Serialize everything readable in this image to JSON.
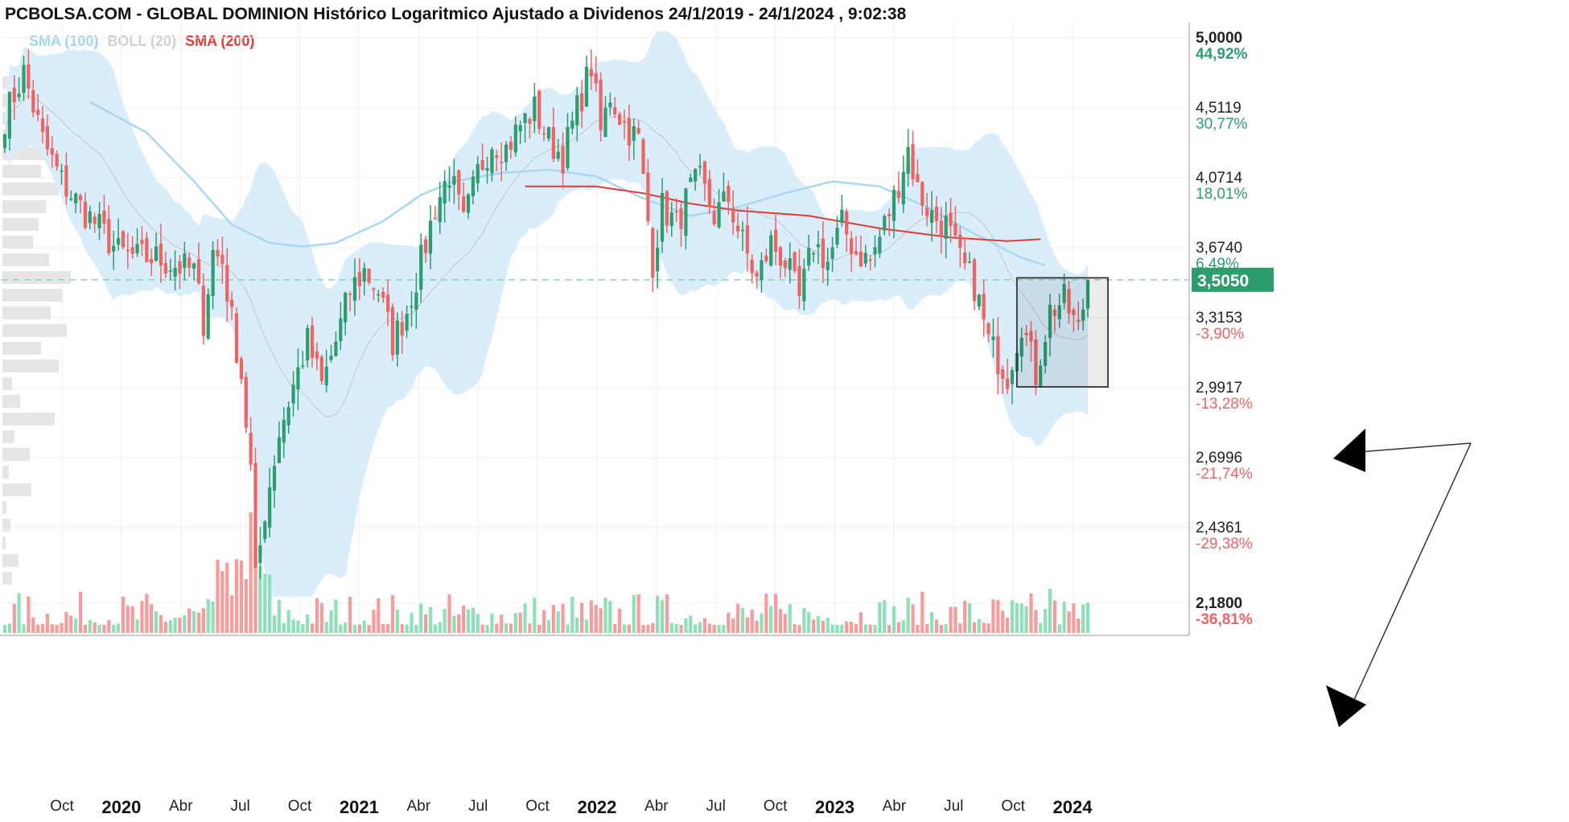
{
  "header": {
    "title": "PCBOLSA.COM - GLOBAL DOMINION Histórico Logaritmico Ajustado a Dividenos 24/1/2019 - 24/1/2024 , 9:02:38"
  },
  "legend": [
    {
      "label": "SMA (100)",
      "color": "#9fd3f3"
    },
    {
      "label": "BOLL (20)",
      "color": "#cfcfcf"
    },
    {
      "label": "SMA (200)",
      "color": "#e53935"
    }
  ],
  "colors": {
    "up": "#2e9d6e",
    "down": "#f06363",
    "vol_up": "#8ee0b8",
    "vol_down": "#f79c9c",
    "boll_fill": "#d9edfb",
    "sma100": "#a8d8f5",
    "sma200": "#e53935",
    "last_price_bg": "#2e9d6e"
  },
  "chart_data": {
    "type": "candlestick",
    "scale": "log",
    "ylim": [
      2.18,
      5.0
    ],
    "y_ticks": [
      {
        "price": "5,0000",
        "pct": "44,92%",
        "dir": "up",
        "bold": true
      },
      {
        "price": "4,5119",
        "pct": "30,77%",
        "dir": "up",
        "bold": false
      },
      {
        "price": "4,0714",
        "pct": "18,01%",
        "dir": "up",
        "bold": false
      },
      {
        "price": "3,6740",
        "pct": "6,49%",
        "dir": "up",
        "bold": false
      },
      {
        "price": "3,3153",
        "pct": "-3,90%",
        "dir": "down",
        "bold": false
      },
      {
        "price": "2,9917",
        "pct": "-13,28%",
        "dir": "down",
        "bold": false
      },
      {
        "price": "2,6996",
        "pct": "-21,74%",
        "dir": "down",
        "bold": false
      },
      {
        "price": "2,4361",
        "pct": "-29,38%",
        "dir": "down",
        "bold": false
      },
      {
        "price": "2,1800",
        "pct": "-36,81%",
        "dir": "down",
        "bold": true
      }
    ],
    "last_price": "3,5050",
    "x_ticks": [
      {
        "label": "Oct",
        "year": false
      },
      {
        "label": "2020",
        "year": true
      },
      {
        "label": "Abr",
        "year": false
      },
      {
        "label": "Jul",
        "year": false
      },
      {
        "label": "Oct",
        "year": false
      },
      {
        "label": "2021",
        "year": true
      },
      {
        "label": "Abr",
        "year": false
      },
      {
        "label": "Jul",
        "year": false
      },
      {
        "label": "Oct",
        "year": false
      },
      {
        "label": "2022",
        "year": true
      },
      {
        "label": "Abr",
        "year": false
      },
      {
        "label": "Jul",
        "year": false
      },
      {
        "label": "Oct",
        "year": false
      },
      {
        "label": "2023",
        "year": true
      },
      {
        "label": "Abr",
        "year": false
      },
      {
        "label": "Jul",
        "year": false
      },
      {
        "label": "Oct",
        "year": false
      },
      {
        "label": "2024",
        "year": true
      }
    ],
    "price_path": [
      [
        0,
        4.45
      ],
      [
        4,
        4.75
      ],
      [
        8,
        4.3
      ],
      [
        12,
        4.05
      ],
      [
        16,
        3.9
      ],
      [
        20,
        3.78
      ],
      [
        24,
        3.65
      ],
      [
        28,
        3.62
      ],
      [
        32,
        3.62
      ],
      [
        36,
        3.58
      ],
      [
        40,
        3.55
      ],
      [
        42,
        3.3
      ],
      [
        44,
        3.65
      ],
      [
        46,
        3.6
      ],
      [
        48,
        3.3
      ],
      [
        50,
        3.05
      ],
      [
        52,
        2.65
      ],
      [
        53,
        2.25
      ],
      [
        55,
        2.5
      ],
      [
        58,
        2.8
      ],
      [
        61,
        3.0
      ],
      [
        64,
        3.2
      ],
      [
        67,
        3.0
      ],
      [
        70,
        3.2
      ],
      [
        73,
        3.45
      ],
      [
        76,
        3.55
      ],
      [
        79,
        3.45
      ],
      [
        82,
        3.2
      ],
      [
        85,
        3.35
      ],
      [
        88,
        3.6
      ],
      [
        91,
        3.9
      ],
      [
        94,
        4.1
      ],
      [
        97,
        3.8
      ],
      [
        100,
        4.1
      ],
      [
        103,
        4.3
      ],
      [
        106,
        4.25
      ],
      [
        109,
        4.4
      ],
      [
        112,
        4.5
      ],
      [
        115,
        4.3
      ],
      [
        118,
        4.2
      ],
      [
        121,
        4.5
      ],
      [
        124,
        4.8
      ],
      [
        126,
        4.35
      ],
      [
        128,
        4.6
      ],
      [
        131,
        4.4
      ],
      [
        134,
        4.3
      ],
      [
        137,
        3.6
      ],
      [
        139,
        3.9
      ],
      [
        142,
        3.8
      ],
      [
        145,
        4.0
      ],
      [
        147,
        4.05
      ],
      [
        150,
        3.85
      ],
      [
        153,
        3.95
      ],
      [
        156,
        3.7
      ],
      [
        159,
        3.5
      ],
      [
        162,
        3.7
      ],
      [
        165,
        3.6
      ],
      [
        168,
        3.4
      ],
      [
        171,
        3.7
      ],
      [
        174,
        3.6
      ],
      [
        177,
        3.8
      ],
      [
        180,
        3.65
      ],
      [
        183,
        3.6
      ],
      [
        186,
        3.8
      ],
      [
        188,
        3.95
      ],
      [
        191,
        4.25
      ],
      [
        193,
        4.0
      ],
      [
        196,
        3.85
      ],
      [
        199,
        3.8
      ],
      [
        202,
        3.6
      ],
      [
        205,
        3.48
      ],
      [
        208,
        3.2
      ],
      [
        212,
        3.05
      ],
      [
        215,
        3.3
      ],
      [
        218,
        3.05
      ],
      [
        221,
        3.35
      ],
      [
        224,
        3.4
      ],
      [
        227,
        3.25
      ],
      [
        229,
        3.5
      ]
    ],
    "volume_series": "weekly volume bars (relative)",
    "sma_100": [
      [
        18,
        4.55
      ],
      [
        30,
        4.35
      ],
      [
        40,
        4.05
      ],
      [
        48,
        3.8
      ],
      [
        56,
        3.7
      ],
      [
        63,
        3.68
      ],
      [
        70,
        3.7
      ],
      [
        80,
        3.82
      ],
      [
        88,
        3.97
      ],
      [
        95,
        4.05
      ],
      [
        105,
        4.1
      ],
      [
        115,
        4.12
      ],
      [
        125,
        4.08
      ],
      [
        135,
        3.95
      ],
      [
        145,
        3.85
      ],
      [
        155,
        3.9
      ],
      [
        165,
        3.98
      ],
      [
        175,
        4.05
      ],
      [
        185,
        4.02
      ],
      [
        195,
        3.9
      ],
      [
        205,
        3.75
      ],
      [
        215,
        3.62
      ],
      [
        220,
        3.58
      ]
    ],
    "sma_200": [
      [
        110,
        4.02
      ],
      [
        125,
        4.02
      ],
      [
        135,
        3.98
      ],
      [
        145,
        3.92
      ],
      [
        155,
        3.88
      ],
      [
        170,
        3.85
      ],
      [
        185,
        3.78
      ],
      [
        200,
        3.73
      ],
      [
        212,
        3.71
      ],
      [
        219,
        3.72
      ]
    ],
    "annotation": "Rectangle highlighting recent range with arrows pointing to latest candle and latest volume bar"
  }
}
